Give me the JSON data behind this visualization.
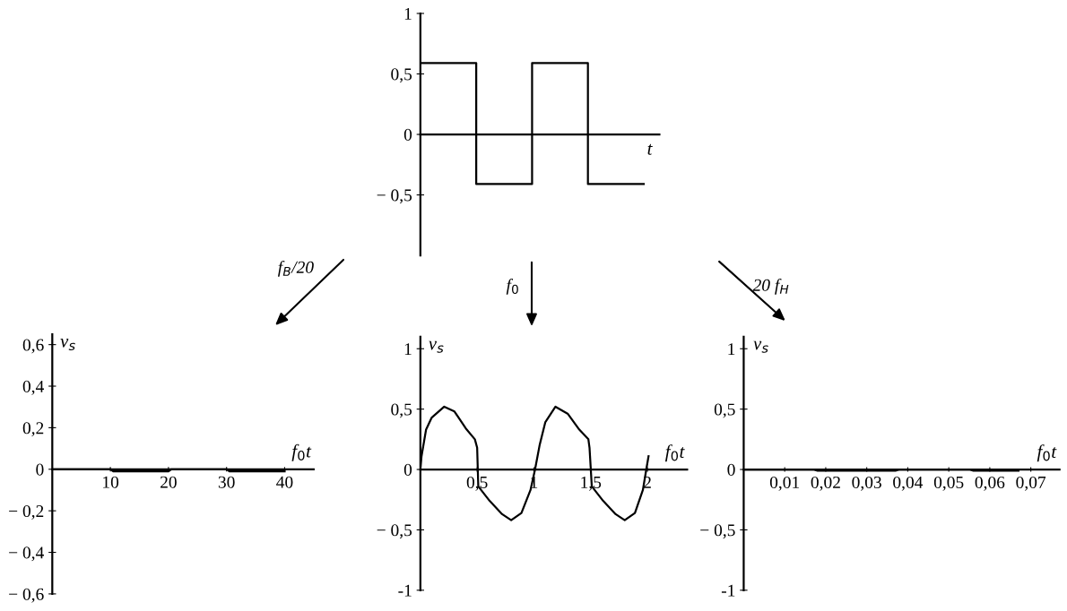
{
  "chart_data": [
    {
      "type": "step",
      "xlabel": "t",
      "categories": [
        null,
        null,
        null,
        null,
        null
      ],
      "color": "#000000",
      "values": [
        0.59,
        -0.41,
        0.59,
        -0.41,
        -0.41
      ],
      "ylim": [
        -1,
        1
      ],
      "yticks": [
        {
          "value": -0.5,
          "label": "− 0,5"
        },
        0,
        {
          "value": 0.5,
          "label": "0,5"
        },
        1
      ],
      "tick_labels": "y"
    },
    {
      "type": "line",
      "xlabel": "f$_{0}$t",
      "ylabel": "v$_{s}$",
      "annotations": [
        "f$_{B}$/20"
      ],
      "color": "#000000",
      "x": [
        0,
        10,
        10.5,
        20,
        20.5,
        30,
        30.5,
        40
      ],
      "values": [
        0,
        0,
        -0.01,
        -0.01,
        0,
        0,
        -0.01,
        -0.01
      ],
      "xlim": [
        0,
        45
      ],
      "xticks": [
        10,
        20,
        30,
        40
      ],
      "ylim": [
        -0.6,
        0.65
      ],
      "yticks": [
        {
          "value": -0.6,
          "label": "− 0,6"
        },
        {
          "value": -0.4,
          "label": "− 0,4"
        },
        {
          "value": -0.2,
          "label": "− 0,2"
        },
        0,
        {
          "value": 0.2,
          "label": "0,2"
        },
        {
          "value": 0.4,
          "label": "0,4"
        },
        {
          "value": 0.6,
          "label": "0,6"
        }
      ]
    },
    {
      "type": "line",
      "xlabel": "f$_{0}$t",
      "ylabel": "v$_{s}$",
      "annotations": [
        "f$_{0}$"
      ],
      "color": "#000000",
      "x": [
        0,
        0.01,
        0.05,
        0.1,
        0.21,
        0.3,
        0.4,
        0.48,
        0.5,
        0.51,
        0.61,
        0.72,
        0.8,
        0.89,
        0.97,
        1.01,
        1.05,
        1.1,
        1.19,
        1.3,
        1.4,
        1.48,
        1.49,
        1.51,
        1.61,
        1.72,
        1.8,
        1.89,
        1.96,
        1.99,
        2.01
      ],
      "values": [
        0,
        0.11,
        0.33,
        0.43,
        0.52,
        0.48,
        0.34,
        0.25,
        0.18,
        -0.14,
        -0.26,
        -0.37,
        -0.42,
        -0.36,
        -0.17,
        0,
        0.2,
        0.39,
        0.52,
        0.46,
        0.33,
        0.25,
        0.18,
        -0.14,
        -0.26,
        -0.37,
        -0.42,
        -0.36,
        -0.17,
        0,
        0.11
      ],
      "xlim": [
        0,
        2.35
      ],
      "xticks": [
        {
          "value": 0.5,
          "label": "0,5"
        },
        1,
        {
          "value": 1.5,
          "label": "1,5"
        },
        2
      ],
      "ylim": [
        -1,
        1.1
      ],
      "yticks": [
        -1,
        {
          "value": -0.5,
          "label": "− 0,5"
        },
        0,
        {
          "value": 0.5,
          "label": "0,5"
        },
        1
      ]
    },
    {
      "type": "line",
      "xlabel": "f$_{0}$t",
      "ylabel": "v$_{s}$",
      "annotations": [
        "20 f$_{H}$"
      ],
      "color": "#000000",
      "x": [
        0,
        0.017,
        0.018,
        0.037,
        0.038,
        0.055,
        0.056,
        0.067
      ],
      "values": [
        0,
        0,
        -0.01,
        -0.01,
        0,
        0,
        -0.01,
        -0.01
      ],
      "xlim": [
        0,
        0.077
      ],
      "xticks": [
        {
          "value": 0.01,
          "label": "0,01"
        },
        {
          "value": 0.02,
          "label": "0,02"
        },
        {
          "value": 0.03,
          "label": "0,03"
        },
        {
          "value": 0.04,
          "label": "0,04"
        },
        {
          "value": 0.05,
          "label": "0,05"
        },
        {
          "value": 0.06,
          "label": "0,06"
        },
        {
          "value": 0.07,
          "label": "0,07"
        }
      ],
      "ylim": [
        -1,
        1.1
      ],
      "yticks": [
        -1,
        {
          "value": -0.5,
          "label": "− 0,5"
        },
        0,
        {
          "value": 0.5,
          "label": "0,5"
        },
        1
      ]
    }
  ]
}
